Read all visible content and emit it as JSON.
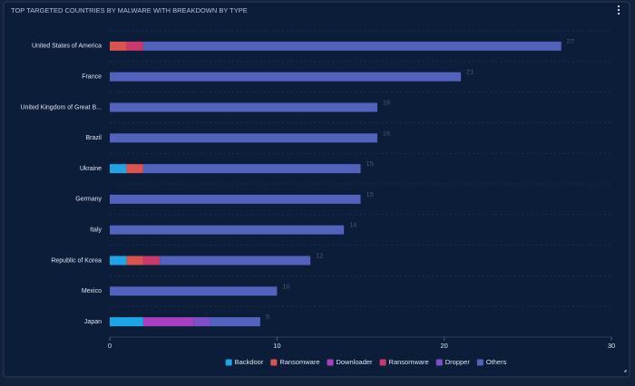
{
  "chart_data": {
    "type": "stacked-bar-horizontal",
    "title": "TOP TARGETED COUNTRIES BY MALWARE WITH BREAKDOWN BY TYPE",
    "categories": [
      "United States of America",
      "France",
      "United Kingdom of Great B...",
      "Brazil",
      "Ukraine",
      "Germany",
      "Italy",
      "Republic of Korea",
      "Mexico",
      "Japan"
    ],
    "series": [
      {
        "name": "Backdoor",
        "color": "#1ea5e6",
        "values": [
          0,
          0,
          0,
          0,
          1,
          0,
          0,
          1,
          0,
          2
        ]
      },
      {
        "name": "Ransomware",
        "color": "#d9534f",
        "values": [
          1,
          0,
          0,
          0,
          1,
          0,
          0,
          1,
          0,
          0
        ]
      },
      {
        "name": "Downloader",
        "color": "#a83fbf",
        "values": [
          0,
          0,
          0,
          0,
          0,
          0,
          0,
          0,
          0,
          3
        ]
      },
      {
        "name": "Ransomware",
        "color": "#c93a6a",
        "values": [
          1,
          0,
          0,
          0,
          0,
          0,
          0,
          1,
          0,
          0
        ]
      },
      {
        "name": "Dropper",
        "color": "#7e4fc9",
        "values": [
          0,
          0,
          0,
          0,
          0,
          0,
          0,
          0,
          0,
          1
        ]
      },
      {
        "name": "Others",
        "color": "#5262bd",
        "values": [
          25,
          21,
          16,
          16,
          13,
          15,
          14,
          9,
          10,
          3
        ]
      }
    ],
    "totals": [
      27,
      21,
      16,
      16,
      15,
      15,
      14,
      12,
      10,
      9
    ],
    "xlim": [
      0,
      30
    ],
    "xticks": [
      0,
      10,
      20,
      30
    ],
    "legend": "bottom"
  }
}
